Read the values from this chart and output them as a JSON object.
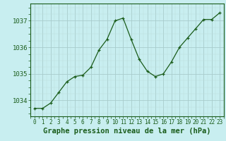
{
  "x": [
    0,
    1,
    2,
    3,
    4,
    5,
    6,
    7,
    8,
    9,
    10,
    11,
    12,
    13,
    14,
    15,
    16,
    17,
    18,
    19,
    20,
    21,
    22,
    23
  ],
  "y": [
    1033.7,
    1033.7,
    1033.9,
    1034.3,
    1034.7,
    1034.9,
    1034.95,
    1035.25,
    1035.9,
    1036.3,
    1037.0,
    1037.1,
    1036.3,
    1035.55,
    1035.1,
    1034.9,
    1035.0,
    1035.45,
    1036.0,
    1036.35,
    1036.7,
    1037.05,
    1037.05,
    1037.3
  ],
  "line_color": "#1a5c1a",
  "marker_color": "#1a5c1a",
  "bg_color": "#c8eef0",
  "grid_color_major": "#a8cccc",
  "grid_color_minor": "#bcdcdc",
  "ylabel_values": [
    1034,
    1035,
    1036,
    1037
  ],
  "xlabel_values": [
    0,
    1,
    2,
    3,
    4,
    5,
    6,
    7,
    8,
    9,
    10,
    11,
    12,
    13,
    14,
    15,
    16,
    17,
    18,
    19,
    20,
    21,
    22,
    23
  ],
  "xlabel": "Graphe pression niveau de la mer (hPa)",
  "xlabel_fontsize": 7.5,
  "ylabel_fontsize": 6.5,
  "xtick_fontsize": 5.5,
  "ylim": [
    1033.4,
    1037.65
  ],
  "xlim": [
    -0.5,
    23.5
  ]
}
